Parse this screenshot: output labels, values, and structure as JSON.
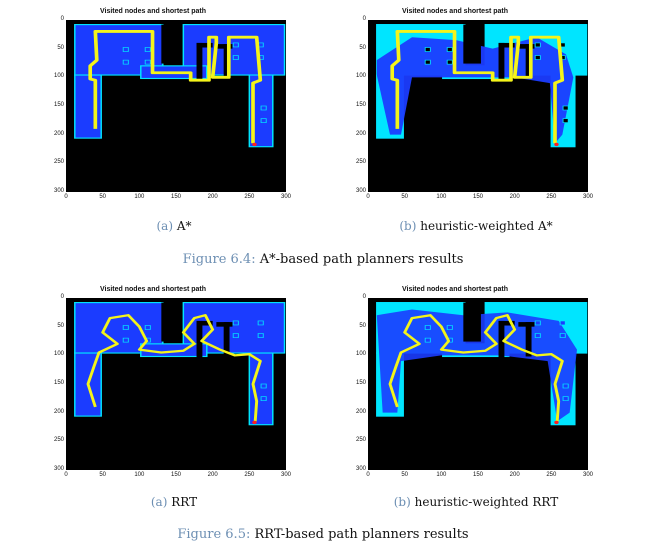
{
  "panels": [
    {
      "title": "Visited nodes and shortest path",
      "caption_label": "(a)",
      "caption_text": "A*",
      "variant": "astar"
    },
    {
      "title": "Visited nodes and shortest path",
      "caption_label": "(b)",
      "caption_text": "heuristic-weighted A*",
      "variant": "hastar"
    },
    {
      "title": "Visited nodes and shortest path",
      "caption_label": "(a)",
      "caption_text": "RRT",
      "variant": "rrt"
    },
    {
      "title": "Visited nodes and shortest path",
      "caption_label": "(b)",
      "caption_text": "heuristic-weighted RRT",
      "variant": "hrrt"
    }
  ],
  "y_ticks": [
    "0",
    "50",
    "100",
    "150",
    "200",
    "250",
    "300"
  ],
  "x_ticks": [
    "0",
    "50",
    "100",
    "150",
    "200",
    "250",
    "300"
  ],
  "figures": [
    {
      "label": "Figure 6.4:",
      "text": "A*-based path planners results"
    },
    {
      "label": "Figure 6.5:",
      "text": "RRT-based path planners results"
    }
  ],
  "colors": {
    "obstacle": "#000000",
    "visited": "#1b3cff",
    "free": "#00e5ff",
    "path": "#f4f41a",
    "goal": "#ff2020"
  }
}
